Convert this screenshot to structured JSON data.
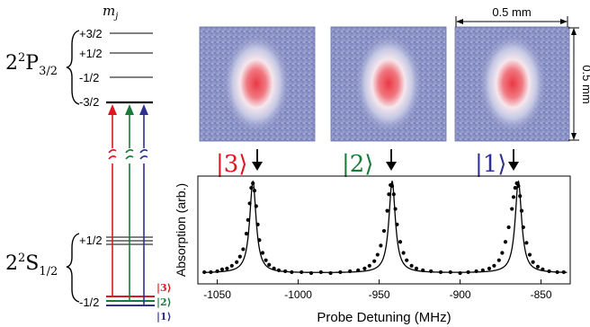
{
  "colors": {
    "state3": "#e0161e",
    "state2": "#1a7a3a",
    "state1": "#2e3191",
    "ink": "#000000",
    "image_bg": "#8c93c6",
    "image_peak": "#e8404a"
  },
  "level_diagram": {
    "mj_header": "m_j",
    "mj_header_base": "m",
    "mj_header_sub": "j",
    "p_state": {
      "prefix": "2",
      "sup": "2",
      "letter": "P",
      "sub": "3/2"
    },
    "s_state": {
      "prefix": "2",
      "sup": "2",
      "letter": "S",
      "sub": "1/2"
    },
    "p_levels": [
      "+3/2",
      "+1/2",
      "-1/2",
      "-3/2"
    ],
    "s_levels": [
      "+1/2",
      "-1/2"
    ],
    "state_labels": [
      "|3⟩",
      "|2⟩",
      "|1⟩"
    ]
  },
  "images": {
    "scale_label": "0.5 mm",
    "scale_label_vertical": "0.5 mm",
    "kets": [
      "|3⟩",
      "|2⟩",
      "|1⟩"
    ]
  },
  "chart_data": {
    "type": "line",
    "xlabel": "Probe Detuning (MHz)",
    "ylabel": "Absorption (arb.)",
    "xlim": [
      -1062,
      -832
    ],
    "xticks": [
      -1050,
      -1000,
      -950,
      -900,
      -850
    ],
    "xtick_labels": [
      "-1050",
      "-1000",
      "-950",
      "-900",
      "-850"
    ],
    "peaks": [
      {
        "label": "|3⟩",
        "center": -1028,
        "height": 1.0
      },
      {
        "label": "|2⟩",
        "center": -942,
        "height": 1.0
      },
      {
        "label": "|1⟩",
        "center": -864,
        "height": 1.0
      }
    ],
    "linewidth_hwhm": 2.4,
    "baseline": 0.02,
    "points": [
      [
        -1058,
        0.03
      ],
      [
        -1054,
        0.03
      ],
      [
        -1050,
        0.04
      ],
      [
        -1047,
        0.06
      ],
      [
        -1044,
        0.07
      ],
      [
        -1041,
        0.1
      ],
      [
        -1038,
        0.14
      ],
      [
        -1036,
        0.2
      ],
      [
        -1034,
        0.28
      ],
      [
        -1032,
        0.45
      ],
      [
        -1031,
        0.6
      ],
      [
        -1030,
        0.78
      ],
      [
        -1029,
        0.95
      ],
      [
        -1028,
        1.0
      ],
      [
        -1027,
        0.92
      ],
      [
        -1026,
        0.75
      ],
      [
        -1025,
        0.55
      ],
      [
        -1024,
        0.38
      ],
      [
        -1022,
        0.24
      ],
      [
        -1020,
        0.16
      ],
      [
        -1018,
        0.11
      ],
      [
        -1015,
        0.07
      ],
      [
        -1012,
        0.05
      ],
      [
        -1008,
        0.04
      ],
      [
        -1004,
        0.03
      ],
      [
        -998,
        0.03
      ],
      [
        -992,
        0.02
      ],
      [
        -986,
        0.03
      ],
      [
        -980,
        0.02
      ],
      [
        -974,
        0.03
      ],
      [
        -968,
        0.04
      ],
      [
        -963,
        0.05
      ],
      [
        -959,
        0.07
      ],
      [
        -956,
        0.1
      ],
      [
        -953,
        0.15
      ],
      [
        -951,
        0.22
      ],
      [
        -949,
        0.32
      ],
      [
        -947,
        0.48
      ],
      [
        -945,
        0.7
      ],
      [
        -944,
        0.88
      ],
      [
        -943,
        0.98
      ],
      [
        -942,
        0.97
      ],
      [
        -941,
        0.88
      ],
      [
        -940,
        0.72
      ],
      [
        -939,
        0.55
      ],
      [
        -937,
        0.36
      ],
      [
        -935,
        0.24
      ],
      [
        -933,
        0.16
      ],
      [
        -930,
        0.1
      ],
      [
        -927,
        0.07
      ],
      [
        -923,
        0.05
      ],
      [
        -918,
        0.04
      ],
      [
        -912,
        0.03
      ],
      [
        -906,
        0.03
      ],
      [
        -900,
        0.02
      ],
      [
        -895,
        0.03
      ],
      [
        -890,
        0.04
      ],
      [
        -886,
        0.05
      ],
      [
        -882,
        0.07
      ],
      [
        -879,
        0.1
      ],
      [
        -876,
        0.16
      ],
      [
        -874,
        0.24
      ],
      [
        -872,
        0.36
      ],
      [
        -870,
        0.52
      ],
      [
        -868,
        0.72
      ],
      [
        -867,
        0.85
      ],
      [
        -866,
        0.95
      ],
      [
        -865,
        1.0
      ],
      [
        -864,
        0.97
      ],
      [
        -863,
        0.86
      ],
      [
        -862,
        0.7
      ],
      [
        -861,
        0.52
      ],
      [
        -859,
        0.35
      ],
      [
        -857,
        0.22
      ],
      [
        -855,
        0.14
      ],
      [
        -852,
        0.09
      ],
      [
        -849,
        0.06
      ],
      [
        -845,
        0.04
      ],
      [
        -840,
        0.03
      ],
      [
        -836,
        0.03
      ]
    ]
  }
}
